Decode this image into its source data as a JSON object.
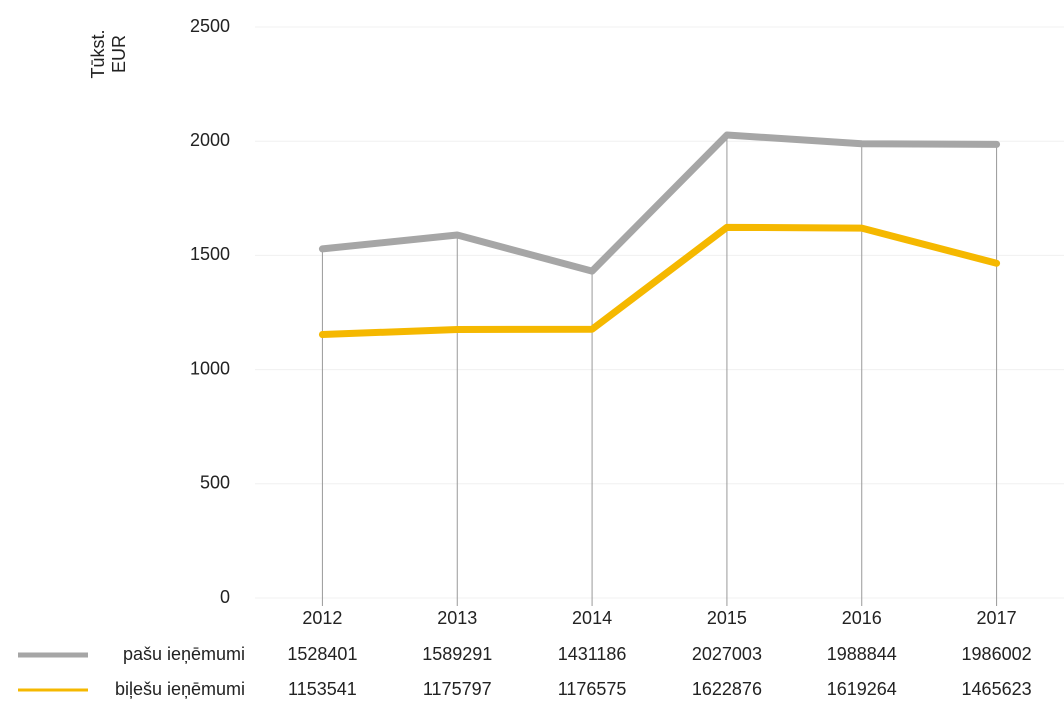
{
  "chart_data": {
    "type": "line",
    "y_label": "Tūkst. EUR",
    "categories": [
      "2012",
      "2013",
      "2014",
      "2015",
      "2016",
      "2017"
    ],
    "series": [
      {
        "name": "pašu ieņēmumi",
        "color": "#a6a6a6",
        "values": [
          1528.401,
          1589.291,
          1431.186,
          2027.003,
          1988.844,
          1986.002
        ],
        "value_labels": [
          "1528401",
          "1589291",
          "1431186",
          "2027003",
          "1988844",
          "1986002"
        ]
      },
      {
        "name": "biļešu ieņēmumi",
        "color": "#f5b800",
        "values": [
          1153.541,
          1175.797,
          1176.575,
          1622.876,
          1619.264,
          1465.623
        ],
        "value_labels": [
          "1153541",
          "1175797",
          "1176575",
          "1622876",
          "1619264",
          "1465623"
        ]
      }
    ],
    "ylim": [
      0,
      2500
    ],
    "yticks": [
      0,
      500,
      1000,
      1500,
      2000,
      2500
    ],
    "grid": true
  }
}
